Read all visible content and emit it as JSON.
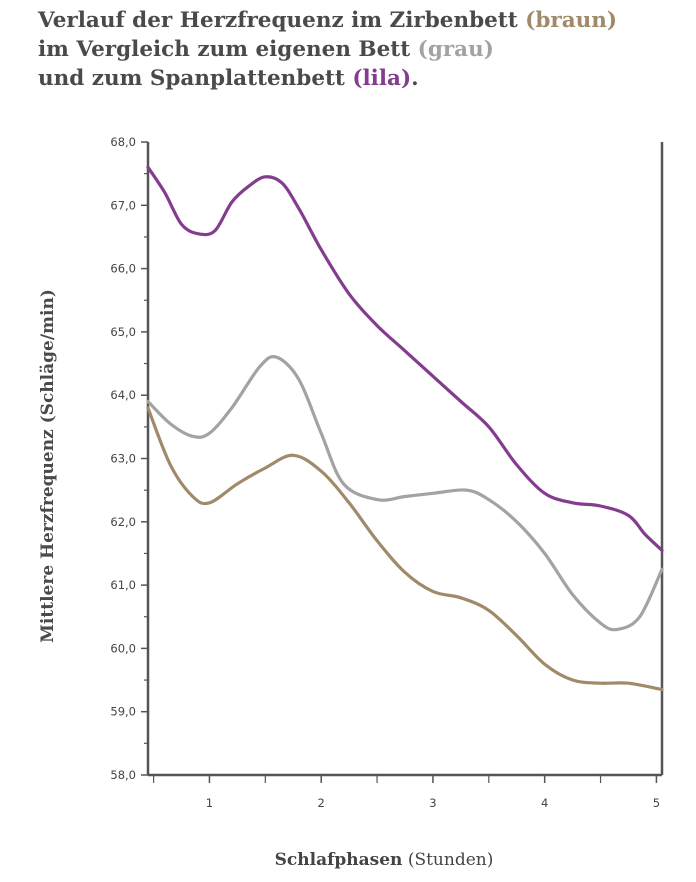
{
  "title": {
    "line1_text": "Verlauf der Herzfrequenz im Zirbenbett ",
    "line1_tag": "(braun)",
    "line2_text": "im Vergleich zum eigenen Bett ",
    "line2_tag": "(grau)",
    "line3_text": "und zum Spanplattenbett ",
    "line3_tag": "(lila)",
    "line3_end": "."
  },
  "colors": {
    "text": "#4a4a4a",
    "braun": "#a08a6a",
    "grau": "#a3a3a3",
    "lila": "#833c8e",
    "axis": "#555555"
  },
  "chart_data": {
    "type": "line",
    "ylabel": "Mittlere Herzfrequenz (Schläge/min)",
    "xlabel_bold": "Schlafphasen",
    "xlabel_rest": " (Stunden)",
    "ylim": [
      58.0,
      68.0
    ],
    "xlim": [
      0.45,
      5.05
    ],
    "yticks": [
      58,
      59,
      60,
      61,
      62,
      63,
      64,
      65,
      66,
      67,
      68
    ],
    "ytick_labels": [
      "58,0",
      "59,0",
      "60,0",
      "61,0",
      "62,0",
      "63,0",
      "64,0",
      "65,0",
      "66,0",
      "67,0",
      "68,0"
    ],
    "xticks": [
      1,
      2,
      3,
      4,
      5
    ],
    "xtick_labels": [
      "1",
      "2",
      "3",
      "4",
      "5"
    ],
    "grid": false,
    "series": [
      {
        "name": "braun",
        "color": "#a08a6a",
        "points": [
          [
            0.45,
            63.8
          ],
          [
            0.65,
            62.9
          ],
          [
            0.85,
            62.4
          ],
          [
            1.0,
            62.3
          ],
          [
            1.25,
            62.6
          ],
          [
            1.5,
            62.85
          ],
          [
            1.75,
            63.05
          ],
          [
            2.0,
            62.8
          ],
          [
            2.25,
            62.3
          ],
          [
            2.5,
            61.7
          ],
          [
            2.75,
            61.2
          ],
          [
            3.0,
            60.9
          ],
          [
            3.25,
            60.8
          ],
          [
            3.5,
            60.6
          ],
          [
            3.75,
            60.2
          ],
          [
            4.0,
            59.75
          ],
          [
            4.25,
            59.5
          ],
          [
            4.5,
            59.45
          ],
          [
            4.75,
            59.45
          ],
          [
            5.05,
            59.35
          ]
        ]
      },
      {
        "name": "grau",
        "color": "#a3a3a3",
        "points": [
          [
            0.45,
            63.9
          ],
          [
            0.65,
            63.55
          ],
          [
            0.85,
            63.35
          ],
          [
            1.0,
            63.4
          ],
          [
            1.2,
            63.8
          ],
          [
            1.45,
            64.45
          ],
          [
            1.6,
            64.6
          ],
          [
            1.8,
            64.25
          ],
          [
            2.0,
            63.4
          ],
          [
            2.2,
            62.6
          ],
          [
            2.5,
            62.35
          ],
          [
            2.75,
            62.4
          ],
          [
            3.0,
            62.45
          ],
          [
            3.3,
            62.5
          ],
          [
            3.5,
            62.35
          ],
          [
            3.75,
            62.0
          ],
          [
            4.0,
            61.5
          ],
          [
            4.25,
            60.85
          ],
          [
            4.5,
            60.4
          ],
          [
            4.65,
            60.3
          ],
          [
            4.85,
            60.5
          ],
          [
            5.05,
            61.25
          ]
        ]
      },
      {
        "name": "lila",
        "color": "#833c8e",
        "points": [
          [
            0.45,
            67.6
          ],
          [
            0.6,
            67.2
          ],
          [
            0.75,
            66.7
          ],
          [
            0.9,
            66.55
          ],
          [
            1.05,
            66.6
          ],
          [
            1.2,
            67.05
          ],
          [
            1.35,
            67.3
          ],
          [
            1.5,
            67.45
          ],
          [
            1.65,
            67.35
          ],
          [
            1.8,
            66.95
          ],
          [
            2.0,
            66.3
          ],
          [
            2.25,
            65.6
          ],
          [
            2.5,
            65.1
          ],
          [
            2.75,
            64.7
          ],
          [
            3.0,
            64.3
          ],
          [
            3.25,
            63.9
          ],
          [
            3.5,
            63.5
          ],
          [
            3.75,
            62.9
          ],
          [
            4.0,
            62.45
          ],
          [
            4.25,
            62.3
          ],
          [
            4.5,
            62.25
          ],
          [
            4.75,
            62.1
          ],
          [
            4.9,
            61.8
          ],
          [
            5.05,
            61.55
          ]
        ]
      }
    ]
  }
}
